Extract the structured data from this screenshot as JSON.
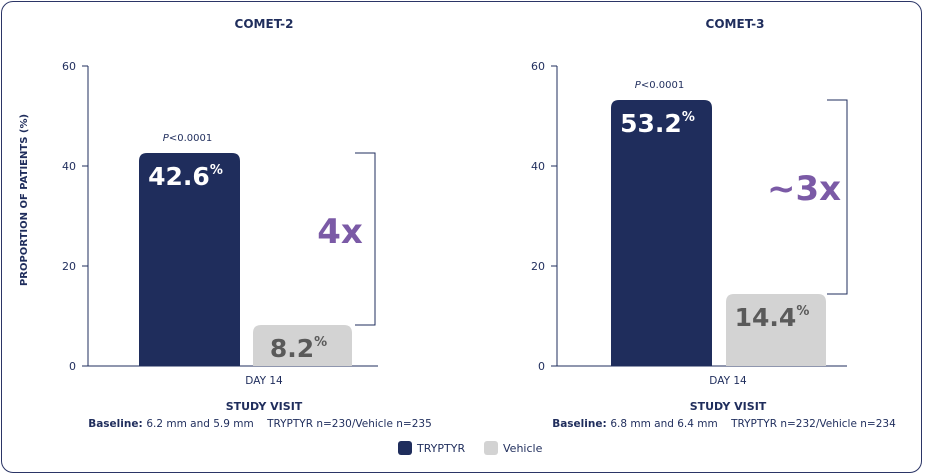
{
  "ylabel": "PROPORTION OF PATIENTS (%)",
  "xlabel": "STUDY VISIT",
  "baseline_label": "Baseline:",
  "colors": {
    "tryptyr": "#1f2d5c",
    "vehicle": "#d3d3d3",
    "vehicle_text": "#5a5a5a",
    "multiplier": "#7b5aa6",
    "axis": "#1f2d5c"
  },
  "legend": [
    {
      "name": "TRYPTYR",
      "color": "#1f2d5c"
    },
    {
      "name": "Vehicle",
      "color": "#d3d3d3"
    }
  ],
  "chart_data": [
    {
      "type": "bar",
      "title": "COMET-2",
      "categories": [
        "DAY 14"
      ],
      "series": [
        {
          "name": "TRYPTYR",
          "values": [
            42.6
          ],
          "label": "42.6",
          "unit": "%"
        },
        {
          "name": "Vehicle",
          "values": [
            8.2
          ],
          "label": "8.2",
          "unit": "%"
        }
      ],
      "yticks": [
        0,
        20,
        40,
        60
      ],
      "ylim": [
        0,
        60
      ],
      "pvalue": "P<0.0001",
      "multiplier": "4x",
      "baseline": "6.2 mm and 5.9 mm    TRYPTYR n=230/Vehicle n=235"
    },
    {
      "type": "bar",
      "title": "COMET-3",
      "categories": [
        "DAY 14"
      ],
      "series": [
        {
          "name": "TRYPTYR",
          "values": [
            53.2
          ],
          "label": "53.2",
          "unit": "%"
        },
        {
          "name": "Vehicle",
          "values": [
            14.4
          ],
          "label": "14.4",
          "unit": "%"
        }
      ],
      "yticks": [
        0,
        20,
        40,
        60
      ],
      "ylim": [
        0,
        60
      ],
      "pvalue": "P<0.0001",
      "multiplier": "~3x",
      "baseline": "6.8 mm and 6.4 mm    TRYPTYR n=232/Vehicle n=234"
    }
  ]
}
